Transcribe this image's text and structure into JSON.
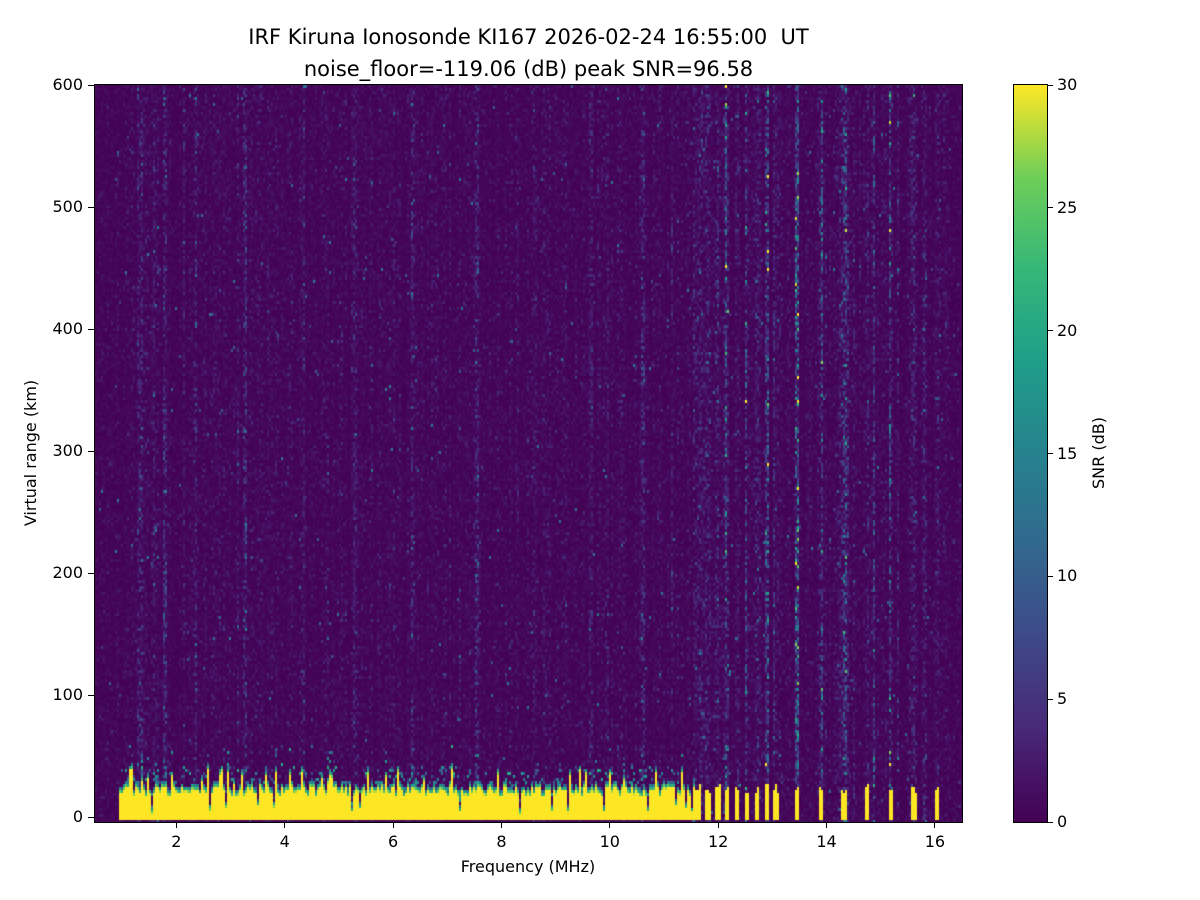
{
  "chart_data": {
    "type": "heatmap",
    "title": "IRF Kiruna Ionosonde KI167 2026-02-24 16:55:00  UT",
    "subtitle": "noise_floor=-119.06 (dB) peak SNR=96.58",
    "xlabel": "Frequency (MHz)",
    "ylabel": "Virtual range (km)",
    "xlim": [
      0.5,
      16.5
    ],
    "ylim": [
      -4,
      600
    ],
    "xticks": [
      2,
      4,
      6,
      8,
      10,
      12,
      14,
      16
    ],
    "yticks": [
      0,
      100,
      200,
      300,
      400,
      500,
      600
    ],
    "grid": false,
    "legend": "none",
    "colorbar": {
      "label": "SNR (dB)",
      "min": 0,
      "max": 30,
      "ticks": [
        0,
        5,
        10,
        15,
        20,
        25,
        30
      ],
      "colormap": "viridis",
      "colormap_anchors": [
        [
          0.0,
          "#440154"
        ],
        [
          0.125,
          "#482878"
        ],
        [
          0.25,
          "#3e4989"
        ],
        [
          0.375,
          "#31688e"
        ],
        [
          0.5,
          "#26828e"
        ],
        [
          0.625,
          "#1f9e89"
        ],
        [
          0.75,
          "#35b779"
        ],
        [
          0.875,
          "#6ece58"
        ],
        [
          1.0,
          "#fde725"
        ]
      ]
    },
    "readings": {
      "noise_floor_db": -119.06,
      "peak_snr_db": 96.58,
      "background_snr_db_mean": 1,
      "ground_echo": {
        "freq_start_mhz": 0.95,
        "freq_end_mhz": 11.55,
        "top_km_typical": 30,
        "top_km_spikes_to": 45,
        "snr_db": 30
      },
      "stepped_pulses": {
        "comb_start_mhz": 11.62,
        "comb_end_mhz": 13.06,
        "comb_spacing_mhz": 0.18,
        "sparse_start_mhz": 13.45,
        "sparse_end_mhz": 16.1,
        "sparse_spacing_mhz": 0.43,
        "pulse_width_mhz": 0.09,
        "pulse_top_km": 24,
        "snr_db": 30
      },
      "rfi_stripe_freqs_mhz": [
        1.35,
        1.8,
        2.35,
        3.25,
        4.35,
        5.3,
        6.35,
        7.55,
        8.6,
        9.65,
        10.6,
        11.7,
        12.1,
        12.5,
        12.9,
        13.45,
        13.9,
        14.35,
        14.85,
        15.3,
        15.8
      ]
    }
  }
}
